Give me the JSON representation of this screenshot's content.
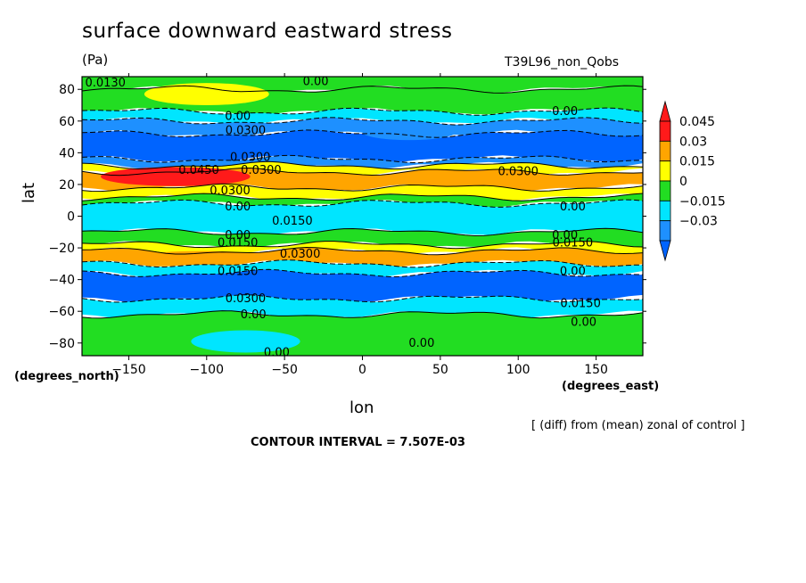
{
  "chart_data": {
    "type": "heatmap",
    "title": "surface downward eastward stress",
    "units": "(Pa)",
    "run_name": "T39L96_non_Qobs",
    "xlabel": "lon",
    "ylabel": "lat",
    "x_unit": "(degrees_east)",
    "y_unit": "(degrees_north)",
    "note": "[ (diff) from (mean) zonal of control ]",
    "contour_interval_text": "CONTOUR INTERVAL = 7.507E-03",
    "xlim": [
      -180,
      180
    ],
    "ylim": [
      -88,
      88
    ],
    "x_ticks": [
      -150,
      -100,
      -50,
      0,
      50,
      100,
      150
    ],
    "y_ticks": [
      -80,
      -60,
      -40,
      -20,
      0,
      20,
      40,
      60,
      80
    ],
    "colorbar": {
      "levels": [
        -0.03,
        -0.015,
        0,
        0.015,
        0.03,
        0.045
      ],
      "labels": [
        "−0.03",
        "−0.015",
        "0",
        "0.015",
        "0.03",
        "0.045"
      ],
      "colors": [
        "#1e90ff",
        "#00e5ff",
        "#22dd22",
        "#ffff00",
        "#ffa500",
        "#ff1a1a"
      ],
      "deep_color": "#0064ff"
    },
    "bands": [
      {
        "lat_top": 88,
        "lat_bottom": 80,
        "value": 0.0
      },
      {
        "lat_top": 80,
        "lat_bottom": 66,
        "value": 0.005
      },
      {
        "lat_top": 66,
        "lat_bottom": 60,
        "value": -0.005
      },
      {
        "lat_top": 60,
        "lat_bottom": 52,
        "value": -0.02
      },
      {
        "lat_top": 52,
        "lat_bottom": 36,
        "value": -0.035
      },
      {
        "lat_top": 36,
        "lat_bottom": 32,
        "value": -0.02
      },
      {
        "lat_top": 32,
        "lat_bottom": 28,
        "value": 0.02
      },
      {
        "lat_top": 28,
        "lat_bottom": 18,
        "value": 0.035
      },
      {
        "lat_top": 18,
        "lat_bottom": 12,
        "value": 0.02
      },
      {
        "lat_top": 12,
        "lat_bottom": 8,
        "value": 0.005
      },
      {
        "lat_top": 8,
        "lat_bottom": -10,
        "value": -0.01
      },
      {
        "lat_top": -10,
        "lat_bottom": -18,
        "value": 0.005
      },
      {
        "lat_top": -18,
        "lat_bottom": -22,
        "value": 0.02
      },
      {
        "lat_top": -22,
        "lat_bottom": -30,
        "value": 0.035
      },
      {
        "lat_top": -30,
        "lat_bottom": -36,
        "value": -0.01
      },
      {
        "lat_top": -36,
        "lat_bottom": -52,
        "value": -0.035
      },
      {
        "lat_top": -52,
        "lat_bottom": -62,
        "value": -0.01
      },
      {
        "lat_top": -62,
        "lat_bottom": -88,
        "value": 0.005
      }
    ],
    "patches": [
      {
        "lon": [
          -168,
          -72
        ],
        "lat": [
          31,
          19
        ],
        "value": 0.05
      },
      {
        "lon": [
          -145,
          -60
        ],
        "lat": [
          -22,
          -30
        ],
        "value": 0.035
      },
      {
        "lon": [
          -140,
          -60
        ],
        "lat": [
          84,
          70
        ],
        "value": 0.02
      },
      {
        "lon": [
          -110,
          -40
        ],
        "lat": [
          -72,
          -86
        ],
        "value": -0.01
      },
      {
        "lon": [
          0,
          60
        ],
        "lat": [
          58,
          48
        ],
        "value": -0.02
      }
    ],
    "contour_labels": [
      {
        "text": "0.0130",
        "lon": -165,
        "lat": 84
      },
      {
        "text": "0.00",
        "lon": -30,
        "lat": 85
      },
      {
        "text": "0.00",
        "lon": -80,
        "lat": 63
      },
      {
        "text": "0.0300",
        "lon": -75,
        "lat": 54
      },
      {
        "text": "0.00",
        "lon": 130,
        "lat": 66
      },
      {
        "text": "0.0300",
        "lon": -72,
        "lat": 37
      },
      {
        "text": "0.0450",
        "lon": -105,
        "lat": 29
      },
      {
        "text": "0.0300",
        "lon": -65,
        "lat": 29
      },
      {
        "text": "0.0300",
        "lon": 100,
        "lat": 28
      },
      {
        "text": "0.0300",
        "lon": -85,
        "lat": 16
      },
      {
        "text": "0.00",
        "lon": -80,
        "lat": 6
      },
      {
        "text": "0.00",
        "lon": 135,
        "lat": 6
      },
      {
        "text": "0.0150",
        "lon": -45,
        "lat": -3
      },
      {
        "text": "0.00",
        "lon": -80,
        "lat": -12
      },
      {
        "text": "0.00",
        "lon": 130,
        "lat": -12
      },
      {
        "text": "0.0150",
        "lon": -80,
        "lat": -17
      },
      {
        "text": "0.0150",
        "lon": 135,
        "lat": -17
      },
      {
        "text": "0.0300",
        "lon": -40,
        "lat": -24
      },
      {
        "text": "0.0150",
        "lon": -80,
        "lat": -35
      },
      {
        "text": "0.00",
        "lon": 135,
        "lat": -35
      },
      {
        "text": "0.0300",
        "lon": -75,
        "lat": -52
      },
      {
        "text": "0.0150",
        "lon": 140,
        "lat": -55
      },
      {
        "text": "0.00",
        "lon": -70,
        "lat": -62
      },
      {
        "text": "0.00",
        "lon": 142,
        "lat": -67
      },
      {
        "text": "0.00",
        "lon": 38,
        "lat": -80
      },
      {
        "text": "0.00",
        "lon": -55,
        "lat": -86
      }
    ]
  }
}
